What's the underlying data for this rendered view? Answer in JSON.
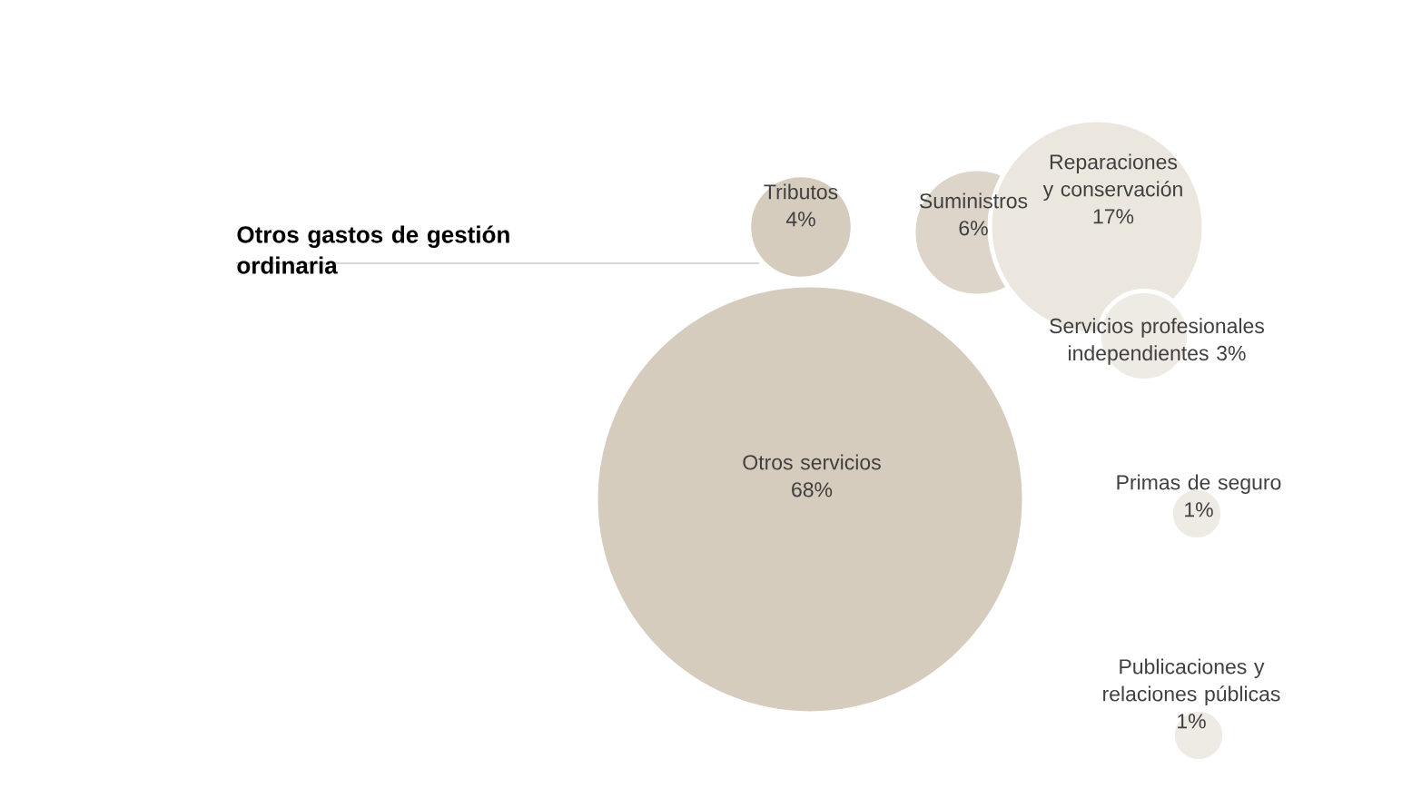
{
  "chart_data": {
    "type": "other",
    "title": "Otros gastos de gestión ordinaria",
    "categories": [
      "Otros servicios",
      "Tributos",
      "Suministros",
      "Reparaciones y conservación",
      "Servicios profesionales independientes",
      "Primas de seguro",
      "Publicaciones y relaciones públicas"
    ],
    "values": [
      68,
      4,
      6,
      17,
      3,
      1,
      1
    ],
    "value_labels": [
      "68%",
      "4%",
      "6%",
      "17%",
      "3%",
      "1%",
      "1%"
    ],
    "colors": [
      "#d6ccbd",
      "#d6ccbd",
      "#ddd5c9",
      "#ebe6de",
      "#eeeae4",
      "#eeeae4",
      "#eeeae4"
    ]
  }
}
